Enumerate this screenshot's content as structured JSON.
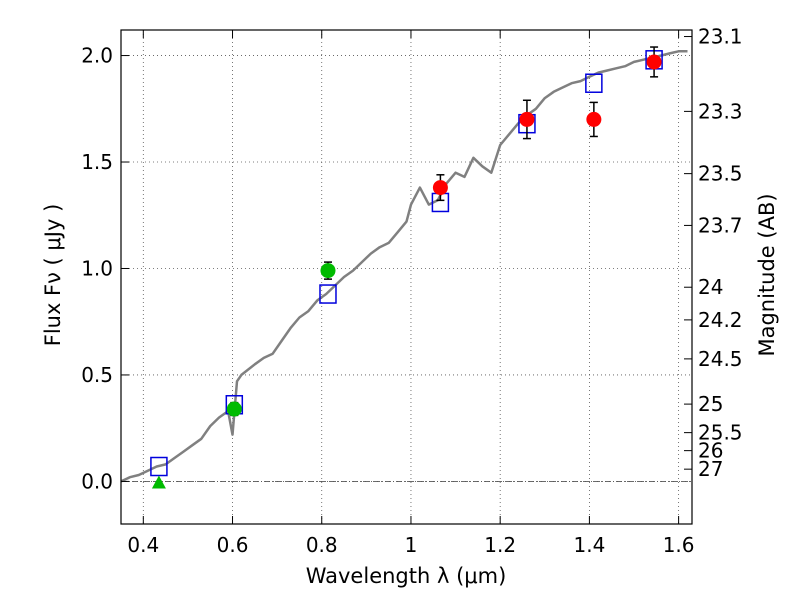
{
  "chart_data": {
    "type": "scatter",
    "title": "",
    "xlabel": "Wavelength  λ (μm)",
    "ylabel_left": "Flux  Fν ( μJy )",
    "ylabel_right": "Magnitude (AB)",
    "xlim": [
      0.35,
      1.63
    ],
    "ylim": [
      -0.2,
      2.12
    ],
    "grid": true,
    "x_ticks": [
      0.4,
      0.6,
      0.8,
      1.0,
      1.2,
      1.4,
      1.6
    ],
    "x_tick_labels": [
      "0.4",
      "0.6",
      "0.8",
      "1",
      "1.2",
      "1.4",
      "1.6"
    ],
    "y_ticks": [
      0.0,
      0.5,
      1.0,
      1.5,
      2.0
    ],
    "y_tick_labels": [
      "0.0",
      "0.5",
      "1.0",
      "1.5",
      "2.0"
    ],
    "magnitude_ticks": [
      "23.1",
      "23.3",
      "23.5",
      "23.7",
      "24",
      "24.2",
      "24.5",
      "25",
      "25.5",
      "26",
      "27"
    ],
    "model_sed": {
      "name": "model SED",
      "color": "#808080",
      "x": [
        0.35,
        0.37,
        0.39,
        0.41,
        0.43,
        0.45,
        0.47,
        0.49,
        0.51,
        0.53,
        0.55,
        0.57,
        0.59,
        0.6,
        0.61,
        0.62,
        0.65,
        0.67,
        0.69,
        0.71,
        0.73,
        0.75,
        0.77,
        0.79,
        0.81,
        0.83,
        0.85,
        0.87,
        0.89,
        0.91,
        0.93,
        0.95,
        0.97,
        0.99,
        1.0,
        1.02,
        1.04,
        1.06,
        1.08,
        1.1,
        1.12,
        1.14,
        1.16,
        1.18,
        1.2,
        1.22,
        1.24,
        1.26,
        1.28,
        1.3,
        1.32,
        1.34,
        1.36,
        1.38,
        1.4,
        1.42,
        1.44,
        1.46,
        1.48,
        1.5,
        1.52,
        1.54,
        1.56,
        1.58,
        1.6,
        1.62
      ],
      "y": [
        0.0,
        0.02,
        0.03,
        0.05,
        0.07,
        0.08,
        0.11,
        0.14,
        0.17,
        0.2,
        0.26,
        0.3,
        0.33,
        0.22,
        0.47,
        0.5,
        0.55,
        0.58,
        0.6,
        0.66,
        0.72,
        0.77,
        0.8,
        0.85,
        0.88,
        0.92,
        0.96,
        0.99,
        1.03,
        1.07,
        1.1,
        1.12,
        1.17,
        1.22,
        1.3,
        1.38,
        1.3,
        1.32,
        1.4,
        1.45,
        1.43,
        1.52,
        1.48,
        1.45,
        1.58,
        1.63,
        1.68,
        1.72,
        1.75,
        1.8,
        1.83,
        1.85,
        1.87,
        1.88,
        1.9,
        1.92,
        1.93,
        1.94,
        1.95,
        1.97,
        1.98,
        1.99,
        2.0,
        2.01,
        2.02,
        2.02
      ]
    },
    "series": [
      {
        "name": "green measurements",
        "marker": "circle",
        "color": "#00bb00",
        "points": [
          {
            "x": 0.604,
            "y": 0.34,
            "err": 0.03
          },
          {
            "x": 0.814,
            "y": 0.99,
            "err": 0.04
          }
        ]
      },
      {
        "name": "green upper limit",
        "marker": "triangle",
        "color": "#00bb00",
        "points": [
          {
            "x": 0.435,
            "y": -0.01,
            "err": 0.0
          }
        ]
      },
      {
        "name": "red measurements",
        "marker": "circle",
        "color": "#ff0000",
        "points": [
          {
            "x": 1.066,
            "y": 1.38,
            "err": 0.06
          },
          {
            "x": 1.26,
            "y": 1.7,
            "err": 0.09
          },
          {
            "x": 1.41,
            "y": 1.7,
            "err": 0.08
          },
          {
            "x": 1.545,
            "y": 1.97,
            "err": 0.07
          }
        ]
      },
      {
        "name": "model photometry",
        "marker": "open-square",
        "color": "#0000dd",
        "points": [
          {
            "x": 0.435,
            "y": 0.07
          },
          {
            "x": 0.604,
            "y": 0.36
          },
          {
            "x": 0.814,
            "y": 0.88
          },
          {
            "x": 1.066,
            "y": 1.31
          },
          {
            "x": 1.26,
            "y": 1.68
          },
          {
            "x": 1.41,
            "y": 1.87
          },
          {
            "x": 1.545,
            "y": 1.98
          }
        ]
      }
    ]
  }
}
